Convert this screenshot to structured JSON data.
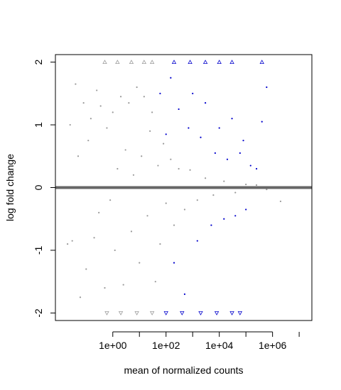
{
  "chart_data": {
    "type": "scatter",
    "title": "",
    "xlabel": "mean of normalized counts",
    "ylabel": "log fold change",
    "x_scale": "log10",
    "xlim": [
      0.007,
      30000000
    ],
    "ylim": [
      -2.12,
      2.12
    ],
    "x_ticks": [
      1,
      100,
      10000,
      1000000
    ],
    "x_tick_labels": [
      "1e+00",
      "1e+02",
      "1e+04",
      "1e+06"
    ],
    "y_ticks": [
      -2,
      -1,
      0,
      1,
      2
    ],
    "y_tick_labels": [
      "-2",
      "-1",
      "0",
      "1",
      "2"
    ],
    "y_clip": [
      -2,
      2
    ],
    "reference_line": {
      "y": 0,
      "color": "#666666"
    },
    "grid": false,
    "legend": "none",
    "series": [
      {
        "color": "#9a9a9a",
        "meaning_hint": "not significant",
        "points": [
          [
            0.02,
            -0.9
          ],
          [
            0.025,
            1.0
          ],
          [
            0.03,
            -0.85
          ],
          [
            0.04,
            1.65
          ],
          [
            0.05,
            0.5
          ],
          [
            0.06,
            -1.75
          ],
          [
            0.08,
            1.35
          ],
          [
            0.1,
            -1.3
          ],
          [
            0.12,
            0.75
          ],
          [
            0.15,
            1.1
          ],
          [
            0.2,
            -0.8
          ],
          [
            0.25,
            1.55
          ],
          [
            0.3,
            -0.4
          ],
          [
            0.35,
            1.3
          ],
          [
            0.5,
            -1.6
          ],
          [
            0.6,
            0.95
          ],
          [
            0.8,
            -0.2
          ],
          [
            1.0,
            1.2
          ],
          [
            1.2,
            -1.0
          ],
          [
            1.5,
            0.3
          ],
          [
            2,
            1.45
          ],
          [
            2.5,
            -1.55
          ],
          [
            3,
            0.6
          ],
          [
            4,
            1.35
          ],
          [
            5,
            -0.7
          ],
          [
            6,
            0.2
          ],
          [
            8,
            1.6
          ],
          [
            10,
            -1.2
          ],
          [
            12,
            0.5
          ],
          [
            15,
            1.45
          ],
          [
            20,
            -0.45
          ],
          [
            25,
            0.9
          ],
          [
            30,
            1.2
          ],
          [
            40,
            -1.5
          ],
          [
            50,
            0.35
          ],
          [
            60,
            -0.9
          ],
          [
            80,
            0.7
          ],
          [
            100,
            -0.25
          ],
          [
            150,
            0.45
          ],
          [
            200,
            -0.6
          ],
          [
            300,
            0.3
          ],
          [
            500,
            -0.35
          ],
          [
            800,
            0.28
          ],
          [
            1500,
            -0.2
          ],
          [
            3000,
            0.15
          ],
          [
            6000,
            -0.12
          ],
          [
            15000,
            0.1
          ],
          [
            40000,
            -0.08
          ],
          [
            100000,
            0.05
          ],
          [
            250000,
            0.04
          ],
          [
            600000,
            -0.03
          ],
          [
            2000000,
            -0.22
          ]
        ]
      },
      {
        "color": "#0000cc",
        "meaning_hint": "significant",
        "points": [
          [
            60,
            1.5
          ],
          [
            100,
            0.85
          ],
          [
            150,
            1.75
          ],
          [
            200,
            -1.2
          ],
          [
            300,
            1.25
          ],
          [
            500,
            -1.7
          ],
          [
            700,
            0.95
          ],
          [
            1000,
            1.5
          ],
          [
            1500,
            -0.85
          ],
          [
            2000,
            0.8
          ],
          [
            3000,
            1.35
          ],
          [
            5000,
            -0.6
          ],
          [
            7000,
            0.55
          ],
          [
            10000,
            0.95
          ],
          [
            15000,
            -0.5
          ],
          [
            20000,
            0.45
          ],
          [
            30000,
            1.1
          ],
          [
            40000,
            -0.45
          ],
          [
            60000,
            0.55
          ],
          [
            80000,
            0.75
          ],
          [
            100000,
            -0.35
          ],
          [
            150000,
            0.35
          ],
          [
            250000,
            0.3
          ],
          [
            400000,
            1.05
          ],
          [
            600000,
            1.6
          ]
        ]
      }
    ],
    "clipped_points_marker": "triangle",
    "clipped_points": [
      {
        "x": 0.5,
        "y": 2,
        "color": "#9a9a9a"
      },
      {
        "x": 1.5,
        "y": 2,
        "color": "#9a9a9a"
      },
      {
        "x": 5,
        "y": 2,
        "color": "#9a9a9a"
      },
      {
        "x": 15,
        "y": 2,
        "color": "#9a9a9a"
      },
      {
        "x": 30,
        "y": 2,
        "color": "#9a9a9a"
      },
      {
        "x": 200,
        "y": 2,
        "color": "#0000cc"
      },
      {
        "x": 800,
        "y": 2,
        "color": "#0000cc"
      },
      {
        "x": 3000,
        "y": 2,
        "color": "#0000cc"
      },
      {
        "x": 10000,
        "y": 2,
        "color": "#0000cc"
      },
      {
        "x": 30000,
        "y": 2,
        "color": "#0000cc"
      },
      {
        "x": 400000,
        "y": 2,
        "color": "#0000cc"
      },
      {
        "x": 0.6,
        "y": -2,
        "color": "#9a9a9a"
      },
      {
        "x": 2,
        "y": -2,
        "color": "#9a9a9a"
      },
      {
        "x": 8,
        "y": -2,
        "color": "#9a9a9a"
      },
      {
        "x": 30,
        "y": -2,
        "color": "#9a9a9a"
      },
      {
        "x": 100,
        "y": -2,
        "color": "#0000cc"
      },
      {
        "x": 400,
        "y": -2,
        "color": "#0000cc"
      },
      {
        "x": 2000,
        "y": -2,
        "color": "#0000cc"
      },
      {
        "x": 8000,
        "y": -2,
        "color": "#0000cc"
      },
      {
        "x": 30000,
        "y": -2,
        "color": "#0000cc"
      },
      {
        "x": 60000,
        "y": -2,
        "color": "#0000cc"
      }
    ]
  }
}
